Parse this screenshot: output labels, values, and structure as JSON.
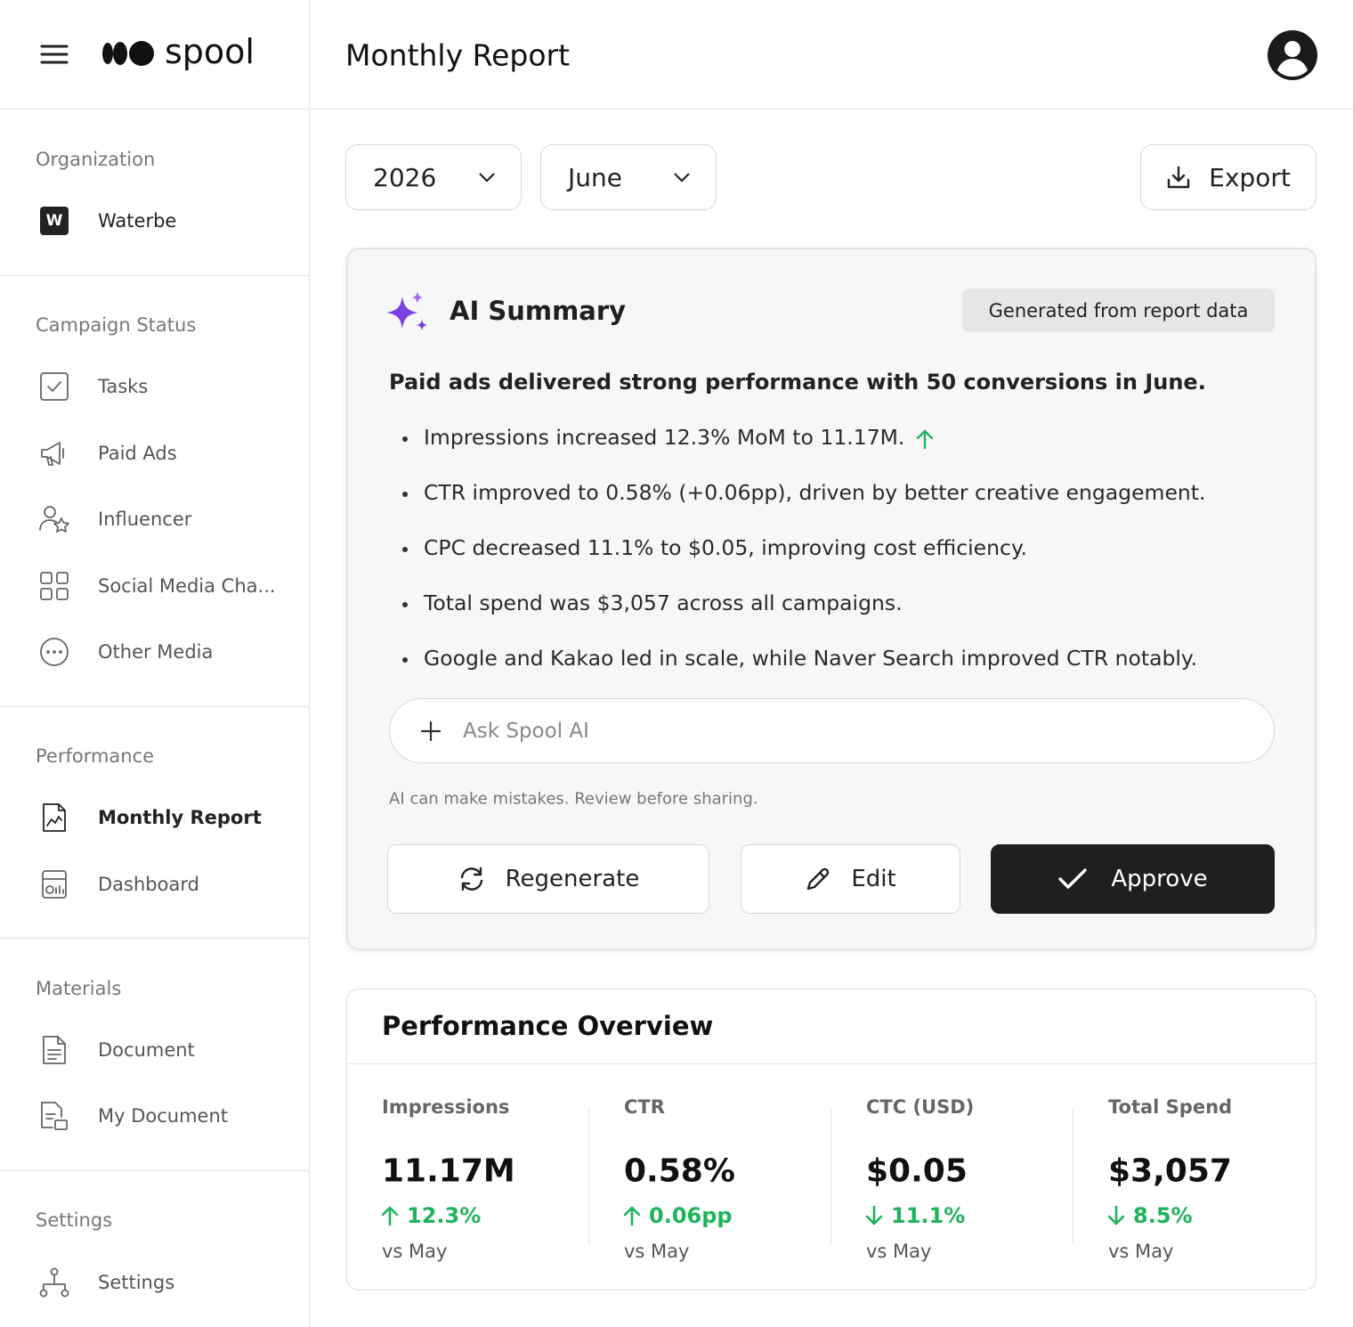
{
  "brand": "spool",
  "header": {
    "title": "Monthly Report"
  },
  "sidebar": {
    "sections": [
      {
        "title": "Organization",
        "items": [
          "Waterbe"
        ],
        "badge": "W"
      },
      {
        "title": "Campaign Status",
        "items": [
          "Tasks",
          "Paid Ads",
          "Influencer",
          "Social Media Cha...",
          "Other Media"
        ]
      },
      {
        "title": "Performance",
        "items": [
          "Monthly Report",
          "Dashboard"
        ]
      },
      {
        "title": "Materials",
        "items": [
          "Document",
          "My Document"
        ]
      },
      {
        "title": "Settings",
        "items": [
          "Settings"
        ]
      }
    ]
  },
  "filters": {
    "year": "2026",
    "month": "June",
    "export": "Export"
  },
  "ai_summary": {
    "title": "AI Summary",
    "badge": "Generated from report data",
    "headline": "Paid ads delivered strong performance with 50 conversions in June.",
    "bullets": [
      "Impressions increased 12.3% MoM to 11.17M.",
      "CTR improved to 0.58% (+0.06pp), driven by better creative engagement.",
      "CPC decreased 11.1% to $0.05, improving cost efficiency.",
      "Total spend was $3,057 across all campaigns.",
      "Google and Kakao led in scale, while Naver Search improved CTR notably."
    ],
    "input_placeholder": "Ask Spool AI",
    "disclaimer": "AI can make mistakes. Review before sharing.",
    "buttons": {
      "regenerate": "Regenerate",
      "edit": "Edit",
      "approve": "Approve"
    }
  },
  "performance": {
    "title": "Performance Overview",
    "metrics": [
      {
        "label": "Impressions",
        "value": "11.17M",
        "change": "12.3%",
        "direction": "up",
        "compare": "vs May"
      },
      {
        "label": "CTR",
        "value": "0.58%",
        "change": "0.06pp",
        "direction": "up",
        "compare": "vs May"
      },
      {
        "label": "CTC (USD)",
        "value": "$0.05",
        "change": "11.1%",
        "direction": "down",
        "compare": "vs May"
      },
      {
        "label": "Total Spend",
        "value": "$3,057",
        "change": "8.5%",
        "direction": "down",
        "compare": "vs May"
      }
    ]
  }
}
